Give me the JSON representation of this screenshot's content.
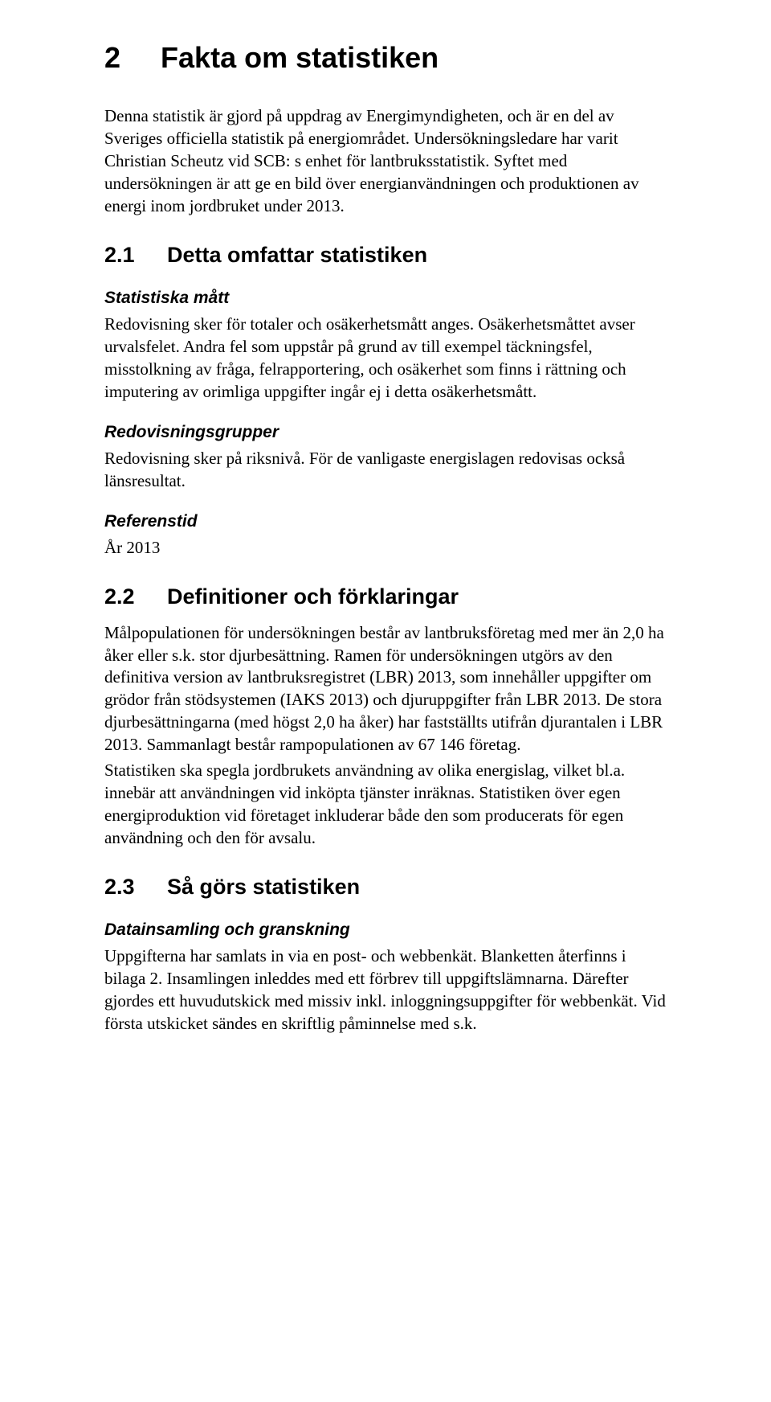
{
  "title": {
    "num": "2",
    "text": "Fakta om statistiken"
  },
  "intro": "Denna statistik är gjord på uppdrag av Energimyndigheten, och är en del av Sveriges officiella statistik på energiområdet. Undersökningsledare har varit Christian Scheutz vid SCB: s enhet för lantbruksstatistik. Syftet med undersökningen är att ge en bild över energianvändningen och produktionen av energi inom jordbruket under 2013.",
  "s21": {
    "num": "2.1",
    "title": "Detta omfattar statistiken",
    "stat_matt_h": "Statistiska mått",
    "stat_matt_p": "Redovisning sker för totaler och osäkerhetsmått anges. Osäkerhetsmåttet avser urvalsfelet. Andra fel som uppstår på grund av till exempel täckningsfel, misstolkning av fråga, felrapportering, och osäkerhet som finns i rättning och imputering av orimliga uppgifter ingår ej i detta osäkerhetsmått.",
    "redov_h": "Redovisningsgrupper",
    "redov_p": "Redovisning sker på riksnivå. För de vanligaste energislagen redovisas också länsresultat.",
    "ref_h": "Referenstid",
    "ref_p": "År 2013"
  },
  "s22": {
    "num": "2.2",
    "title": "Definitioner och förklaringar",
    "p1": "Målpopulationen för undersökningen består av lantbruksföretag med mer än 2,0 ha åker eller s.k. stor djurbesättning. Ramen för undersökningen utgörs av den definitiva version av lantbruksregistret (LBR) 2013, som innehåller uppgifter om grödor från stödsystemen (IAKS 2013) och djuruppgifter från LBR 2013. De stora djurbesättningarna (med högst 2,0 ha åker) har fastställts utifrån djurantalen i LBR 2013. Sammanlagt består rampopulationen av 67 146 företag.",
    "p2": "Statistiken ska spegla jordbrukets användning av olika energislag, vilket bl.a. innebär att användningen vid inköpta tjänster inräknas. Statistiken över egen energiproduktion vid företaget inkluderar både den som producerats för egen användning och den för avsalu."
  },
  "s23": {
    "num": "2.3",
    "title": "Så görs statistiken",
    "data_h": "Datainsamling och granskning",
    "data_p": "Uppgifterna har samlats in via en post- och webbenkät. Blanketten återfinns i bilaga 2. Insamlingen inleddes med ett förbrev till uppgiftslämnarna. Därefter gjordes ett huvudutskick med missiv inkl. inloggningsuppgifter för webbenkät. Vid första utskicket sändes en skriftlig påminnelse med s.k."
  }
}
